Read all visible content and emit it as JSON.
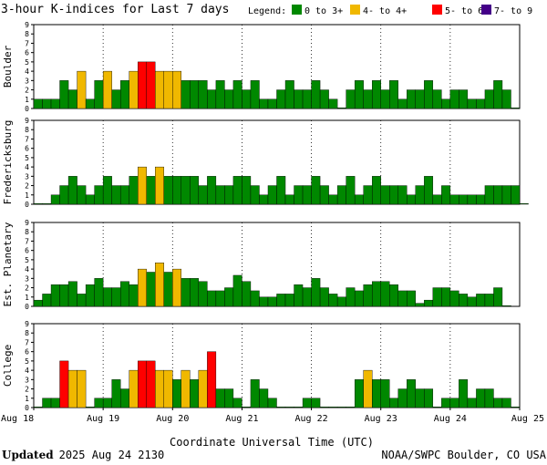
{
  "chart_data": {
    "type": "bar",
    "title": "3-hour K-indices for Last 7 days",
    "legend_label": "Legend:",
    "legend": [
      {
        "name": "0 to 3+",
        "color": "#008800"
      },
      {
        "name": "4- to 4+",
        "color": "#f0b800"
      },
      {
        "name": "5- to 6+",
        "color": "#ff0000"
      },
      {
        "name": "7- to 9",
        "color": "#440088"
      }
    ],
    "xlabel": "Coordinate Universal Time (UTC)",
    "x_ticks": [
      "Aug 18",
      "Aug 19",
      "Aug 20",
      "Aug 21",
      "Aug 22",
      "Aug 23",
      "Aug 24",
      "Aug 25"
    ],
    "ylim": [
      0,
      9
    ],
    "y_ticks": [
      "0",
      "1",
      "2",
      "3",
      "4",
      "5",
      "6",
      "7",
      "8",
      "9"
    ],
    "grid": true,
    "panels": [
      {
        "name": "Boulder",
        "values": [
          1,
          1,
          1,
          3,
          2,
          4,
          1,
          3,
          4,
          2,
          3,
          4,
          5,
          5,
          4,
          4,
          4,
          3,
          3,
          3,
          2,
          3,
          2,
          3,
          2,
          3,
          1,
          1,
          2,
          3,
          2,
          2,
          3,
          2,
          1,
          0,
          2,
          3,
          2,
          3,
          2,
          3,
          1,
          2,
          2,
          3,
          2,
          1,
          2,
          2,
          1,
          1,
          2,
          3,
          2,
          0
        ]
      },
      {
        "name": "Fredericksburg",
        "values": [
          0,
          0,
          1,
          2,
          3,
          2,
          1,
          2,
          3,
          2,
          2,
          3,
          4,
          3,
          4,
          3,
          3,
          3,
          3,
          2,
          3,
          2,
          2,
          3,
          3,
          2,
          1,
          2,
          3,
          1,
          2,
          2,
          3,
          2,
          1,
          2,
          3,
          1,
          2,
          3,
          2,
          2,
          2,
          1,
          2,
          3,
          1,
          2,
          1,
          1,
          1,
          1,
          2,
          2,
          2,
          2,
          0
        ]
      },
      {
        "name": "Est. Planetary",
        "values": [
          0.67,
          1.33,
          2.33,
          2.33,
          2.67,
          1.33,
          2.33,
          3,
          2,
          2,
          2.67,
          2.33,
          4,
          3.67,
          4.67,
          3.67,
          4,
          3,
          3,
          2.67,
          1.67,
          1.67,
          2,
          3.33,
          2.67,
          1.67,
          1,
          1,
          1.33,
          1.33,
          2.33,
          2,
          3,
          2,
          1.33,
          1,
          2,
          1.67,
          2.33,
          2.67,
          2.67,
          2.33,
          1.67,
          1.67,
          0.33,
          0.67,
          2,
          2,
          1.67,
          1.33,
          1,
          1.33,
          1.33,
          2,
          0
        ]
      },
      {
        "name": "College",
        "values": [
          0,
          1,
          1,
          5,
          4,
          4,
          0,
          1,
          1,
          3,
          2,
          4,
          5,
          5,
          4,
          4,
          3,
          4,
          3,
          4,
          6,
          2,
          2,
          1,
          0,
          3,
          2,
          1,
          0,
          0,
          0,
          1,
          1,
          0,
          0,
          0,
          0,
          3,
          4,
          3,
          3,
          1,
          2,
          3,
          2,
          2,
          0,
          1,
          1,
          3,
          1,
          2,
          2,
          1,
          1,
          0
        ]
      }
    ]
  },
  "footer": {
    "updated_label": "Updated",
    "updated_value": "2025 Aug 24 2130",
    "source": "NOAA/SWPC Boulder, CO USA"
  }
}
